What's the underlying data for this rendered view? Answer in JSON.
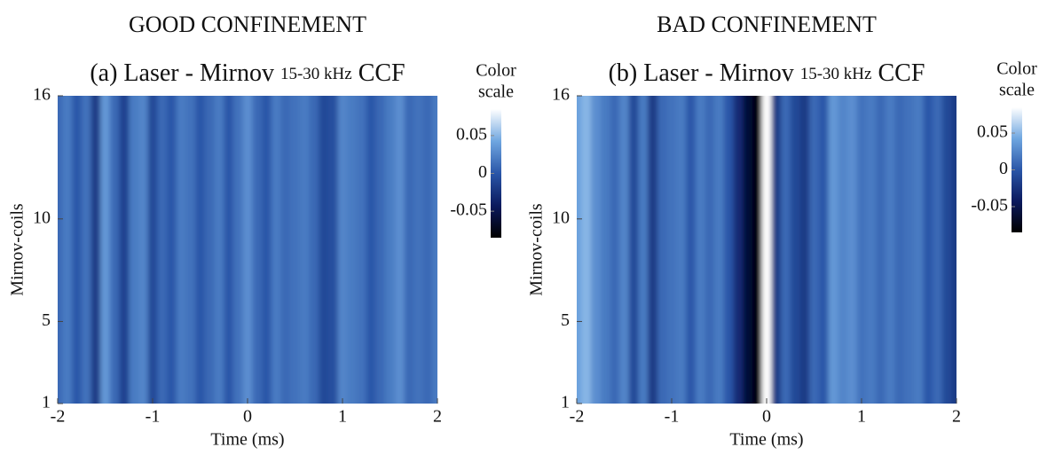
{
  "chart_data": [
    {
      "type": "heatmap",
      "heading": "GOOD CONFINEMENT",
      "title": "(a) Laser - Mirnov",
      "title_band": "15-30 kHz",
      "title_suffix": "CCF",
      "xlabel": "Time (ms)",
      "ylabel": "Mirnov-coils",
      "colorbar_label": [
        "Color",
        "scale"
      ],
      "x": [
        -2,
        -1.9,
        -1.8,
        -1.7,
        -1.6,
        -1.5,
        -1.4,
        -1.3,
        -1.2,
        -1.1,
        -1,
        -0.9,
        -0.8,
        -0.7,
        -0.6,
        -0.5,
        -0.4,
        -0.3,
        -0.2,
        -0.1,
        0,
        0.1,
        0.2,
        0.3,
        0.4,
        0.5,
        0.6,
        0.7,
        0.8,
        0.9,
        1,
        1.1,
        1.2,
        1.3,
        1.4,
        1.5,
        1.6,
        1.7,
        1.8,
        1.9,
        2
      ],
      "values": [
        0.01,
        0.02,
        0,
        0.015,
        -0.02,
        0.035,
        0.01,
        -0.015,
        0.02,
        0.025,
        -0.01,
        0.01,
        0,
        0.02,
        0.015,
        0,
        0.01,
        0.02,
        0,
        0.015,
        0.03,
        0.01,
        0,
        0.02,
        0.01,
        0.015,
        0.02,
        0.01,
        -0.01,
        -0.005,
        0.025,
        0.02,
        0.015,
        0,
        0.01,
        0.02,
        0.03,
        0.01,
        0.015,
        0.01,
        0.02
      ],
      "xlim": [
        -2,
        2
      ],
      "xticks": [
        -2,
        -1,
        0,
        1,
        2
      ],
      "ylim": [
        1,
        16
      ],
      "yticks": [
        1,
        5,
        10,
        16
      ],
      "clim": [
        -0.085,
        0.085
      ],
      "cticks": [
        0.05,
        0,
        -0.05
      ],
      "colormap": [
        "#000000",
        "#0b1a5e",
        "#2a56a8",
        "#6fa6e0",
        "#ffffff"
      ]
    },
    {
      "type": "heatmap",
      "heading": "BAD CONFINEMENT",
      "title": "(b) Laser - Mirnov",
      "title_band": "15-30 kHz",
      "title_suffix": "CCF",
      "xlabel": "Time (ms)",
      "ylabel": "Mirnov-coils",
      "colorbar_label": [
        "Color",
        "scale"
      ],
      "x": [
        -2,
        -1.9,
        -1.8,
        -1.7,
        -1.6,
        -1.5,
        -1.4,
        -1.3,
        -1.2,
        -1.1,
        -1,
        -0.9,
        -0.8,
        -0.7,
        -0.6,
        -0.5,
        -0.4,
        -0.3,
        -0.2,
        -0.1,
        0,
        0.1,
        0.2,
        0.3,
        0.4,
        0.5,
        0.6,
        0.7,
        0.8,
        0.9,
        1,
        1.1,
        1.2,
        1.3,
        1.4,
        1.5,
        1.6,
        1.7,
        1.8,
        1.9,
        2
      ],
      "values": [
        0.04,
        0.05,
        0.03,
        0.02,
        0.01,
        0.025,
        -0.01,
        0.02,
        -0.02,
        0.01,
        0.015,
        0.02,
        0,
        0.02,
        0.01,
        0.02,
        0,
        -0.03,
        -0.06,
        -0.08,
        0.085,
        -0.02,
        0.01,
        -0.01,
        -0.02,
        0.01,
        0,
        0.035,
        0.025,
        0.03,
        0.015,
        0.02,
        0.01,
        0.02,
        0.01,
        0.015,
        0.02,
        0,
        0.01,
        -0.01,
        -0.02
      ],
      "xlim": [
        -2,
        2
      ],
      "xticks": [
        -2,
        -1,
        0,
        1,
        2
      ],
      "ylim": [
        1,
        16
      ],
      "yticks": [
        1,
        5,
        10,
        16
      ],
      "clim": [
        -0.085,
        0.085
      ],
      "cticks": [
        0.05,
        0,
        -0.05
      ],
      "colormap": [
        "#000000",
        "#0b1a5e",
        "#2a56a8",
        "#6fa6e0",
        "#ffffff"
      ]
    }
  ]
}
